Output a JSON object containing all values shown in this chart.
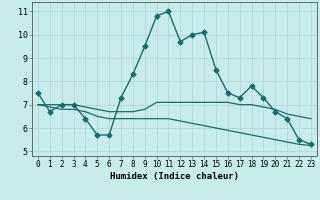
{
  "xlabel": "Humidex (Indice chaleur)",
  "ylabel": "",
  "bg_color": "#c8ecec",
  "grid_color": "#b0d8d8",
  "line_color": "#1a6b6b",
  "xlim": [
    -0.5,
    23.5
  ],
  "ylim": [
    4.8,
    11.4
  ],
  "xticks": [
    0,
    1,
    2,
    3,
    4,
    5,
    6,
    7,
    8,
    9,
    10,
    11,
    12,
    13,
    14,
    15,
    16,
    17,
    18,
    19,
    20,
    21,
    22,
    23
  ],
  "yticks": [
    5,
    6,
    7,
    8,
    9,
    10,
    11
  ],
  "line1": {
    "x": [
      0,
      1,
      2,
      3,
      4,
      5,
      6,
      7,
      8,
      9,
      10,
      11,
      12,
      13,
      14,
      15,
      16,
      17,
      18,
      19,
      20,
      21,
      22,
      23
    ],
    "y": [
      7.5,
      6.7,
      7.0,
      7.0,
      6.4,
      5.7,
      5.7,
      7.3,
      8.3,
      9.5,
      10.8,
      11.0,
      9.7,
      10.0,
      10.1,
      8.5,
      7.5,
      7.3,
      7.8,
      7.3,
      6.7,
      6.4,
      5.5,
      5.3
    ],
    "marker": "D",
    "markersize": 2.5,
    "linewidth": 1.0
  },
  "line2": {
    "x": [
      0,
      1,
      2,
      3,
      4,
      5,
      6,
      7,
      8,
      9,
      10,
      11,
      12,
      13,
      14,
      15,
      16,
      17,
      18,
      19,
      20,
      21,
      22,
      23
    ],
    "y": [
      7.0,
      7.0,
      7.0,
      7.0,
      6.9,
      6.8,
      6.7,
      6.7,
      6.7,
      6.8,
      7.1,
      7.1,
      7.1,
      7.1,
      7.1,
      7.1,
      7.1,
      7.0,
      7.0,
      6.9,
      6.8,
      6.6,
      6.5,
      6.4
    ],
    "linewidth": 0.9
  },
  "line3": {
    "x": [
      0,
      1,
      2,
      3,
      4,
      5,
      6,
      7,
      8,
      9,
      10,
      11,
      12,
      13,
      14,
      15,
      16,
      17,
      18,
      19,
      20,
      21,
      22,
      23
    ],
    "y": [
      7.0,
      6.9,
      6.8,
      6.8,
      6.7,
      6.5,
      6.4,
      6.4,
      6.4,
      6.4,
      6.4,
      6.4,
      6.3,
      6.2,
      6.1,
      6.0,
      5.9,
      5.8,
      5.7,
      5.6,
      5.5,
      5.4,
      5.3,
      5.25
    ],
    "linewidth": 0.9
  },
  "xlabel_fontsize": 6.5,
  "tick_fontsize": 5.5
}
